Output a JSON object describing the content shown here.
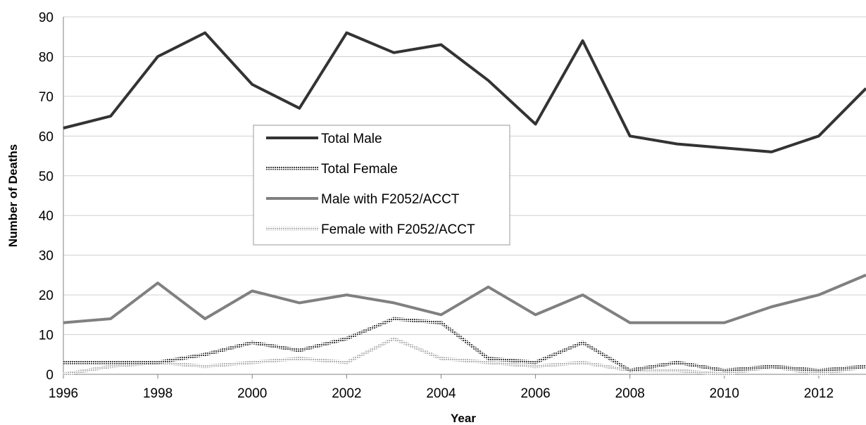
{
  "chart_data": {
    "type": "line",
    "xlabel": "Year",
    "ylabel": "Number of Deaths",
    "xlim": [
      1996,
      2013
    ],
    "ylim": [
      0,
      90
    ],
    "x_ticks": [
      1996,
      1998,
      2000,
      2002,
      2004,
      2006,
      2008,
      2010,
      2012
    ],
    "y_ticks": [
      0,
      10,
      20,
      30,
      40,
      50,
      60,
      70,
      80,
      90
    ],
    "grid": "horizontal",
    "legend_position": "center-left",
    "x": [
      1996,
      1997,
      1998,
      1999,
      2000,
      2001,
      2002,
      2003,
      2004,
      2005,
      2006,
      2007,
      2008,
      2009,
      2010,
      2011,
      2012,
      2013
    ],
    "series": [
      {
        "name": "Total Male",
        "color": "#333333",
        "style": "solid",
        "values": [
          62,
          65,
          80,
          86,
          73,
          67,
          86,
          81,
          83,
          74,
          63,
          84,
          60,
          58,
          57,
          56,
          60,
          72
        ]
      },
      {
        "name": "Total Female",
        "color": "#444444",
        "style": "hatched",
        "values": [
          3,
          3,
          3,
          5,
          8,
          6,
          9,
          14,
          13,
          4,
          3,
          8,
          1,
          3,
          1,
          2,
          1,
          2
        ]
      },
      {
        "name": "Male with F2052/ACCT",
        "color": "#808080",
        "style": "solid",
        "values": [
          13,
          14,
          23,
          14,
          21,
          18,
          20,
          18,
          15,
          22,
          15,
          20,
          13,
          13,
          13,
          17,
          20,
          25
        ]
      },
      {
        "name": "Female with F2052/ACCT",
        "color": "#b3b3b3",
        "style": "hatched",
        "values": [
          0,
          2,
          3,
          2,
          3,
          4,
          3,
          9,
          4,
          3,
          2,
          3,
          1,
          1,
          0,
          2,
          0,
          2
        ]
      }
    ]
  }
}
